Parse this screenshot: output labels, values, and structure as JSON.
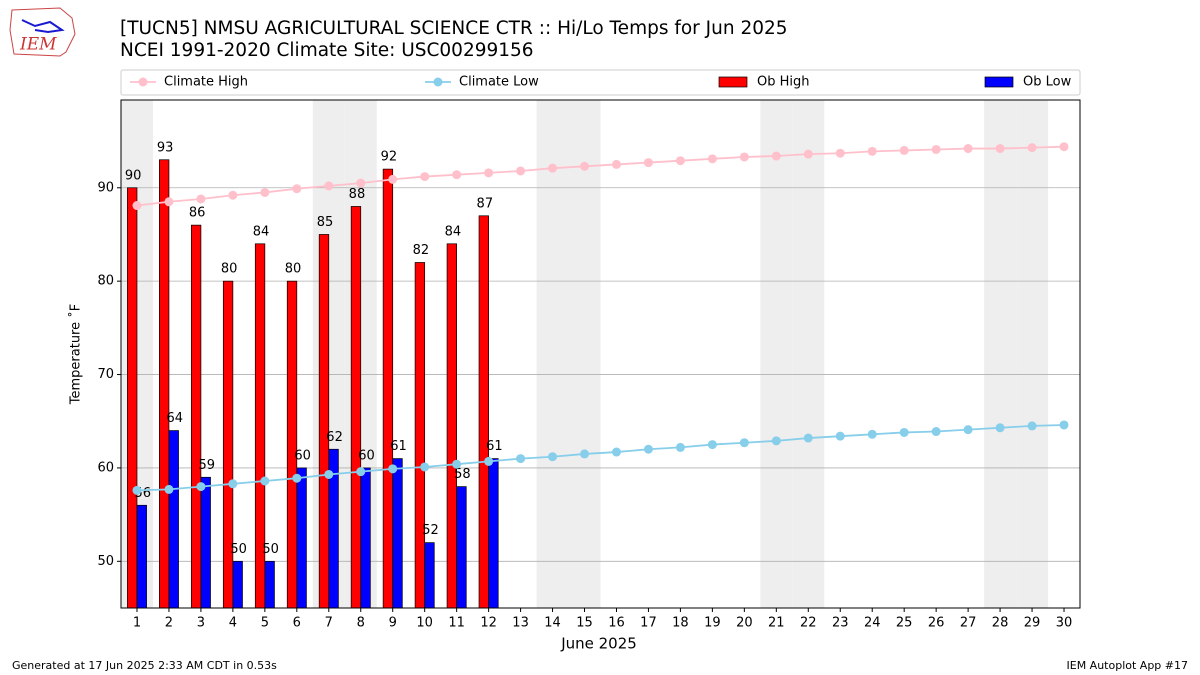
{
  "logo": "IEM",
  "footer": {
    "left": "Generated at 17 Jun 2025 2:33 AM CDT in 0.53s",
    "right": "IEM Autoplot App #17"
  },
  "chart_data": {
    "type": "bar",
    "title": "[TUCN5] NMSU AGRICULTURAL SCIENCE CTR :: Hi/Lo Temps for Jun 2025",
    "subtitle": "NCEI 1991-2020 Climate Site: USC00299156",
    "x_label": "June 2025",
    "y_label": "Temperature ˚F",
    "x": [
      1,
      2,
      3,
      4,
      5,
      6,
      7,
      8,
      9,
      10,
      11,
      12,
      13,
      14,
      15,
      16,
      17,
      18,
      19,
      20,
      21,
      22,
      23,
      24,
      25,
      26,
      27,
      28,
      29,
      30
    ],
    "xlim": [
      0.5,
      30.5
    ],
    "ylim": [
      45,
      99.4
    ],
    "yticks": [
      50,
      60,
      70,
      80,
      90
    ],
    "grid": true,
    "shaded_days": [
      1,
      7,
      8,
      14,
      15,
      21,
      22,
      28,
      29
    ],
    "series": [
      {
        "name": "Climate High",
        "type": "line",
        "color": "#ffc0cb",
        "values": [
          88.1,
          88.5,
          88.8,
          89.2,
          89.5,
          89.9,
          90.2,
          90.5,
          90.9,
          91.2,
          91.4,
          91.6,
          91.8,
          92.1,
          92.3,
          92.5,
          92.7,
          92.9,
          93.1,
          93.3,
          93.4,
          93.6,
          93.7,
          93.9,
          94.0,
          94.1,
          94.2,
          94.2,
          94.3,
          94.4
        ]
      },
      {
        "name": "Climate Low",
        "type": "line",
        "color": "#87ceeb",
        "values": [
          57.6,
          57.7,
          58.0,
          58.3,
          58.6,
          58.9,
          59.3,
          59.6,
          59.9,
          60.1,
          60.4,
          60.7,
          61.0,
          61.2,
          61.5,
          61.7,
          62.0,
          62.2,
          62.5,
          62.7,
          62.9,
          63.2,
          63.4,
          63.6,
          63.8,
          63.9,
          64.1,
          64.3,
          64.5,
          64.6
        ]
      },
      {
        "name": "Ob High",
        "type": "bar",
        "color": "#ff0000",
        "values": [
          90,
          93,
          86,
          80,
          84,
          80,
          85,
          88,
          92,
          82,
          84,
          87,
          null,
          null,
          null,
          null,
          null,
          null,
          null,
          null,
          null,
          null,
          null,
          null,
          null,
          null,
          null,
          null,
          null,
          null
        ]
      },
      {
        "name": "Ob Low",
        "type": "bar",
        "color": "#0000ff",
        "values": [
          56,
          64,
          59,
          50,
          50,
          60,
          62,
          60,
          61,
          52,
          58,
          61,
          null,
          null,
          null,
          null,
          null,
          null,
          null,
          null,
          null,
          null,
          null,
          null,
          null,
          null,
          null,
          null,
          null,
          null
        ]
      }
    ]
  }
}
